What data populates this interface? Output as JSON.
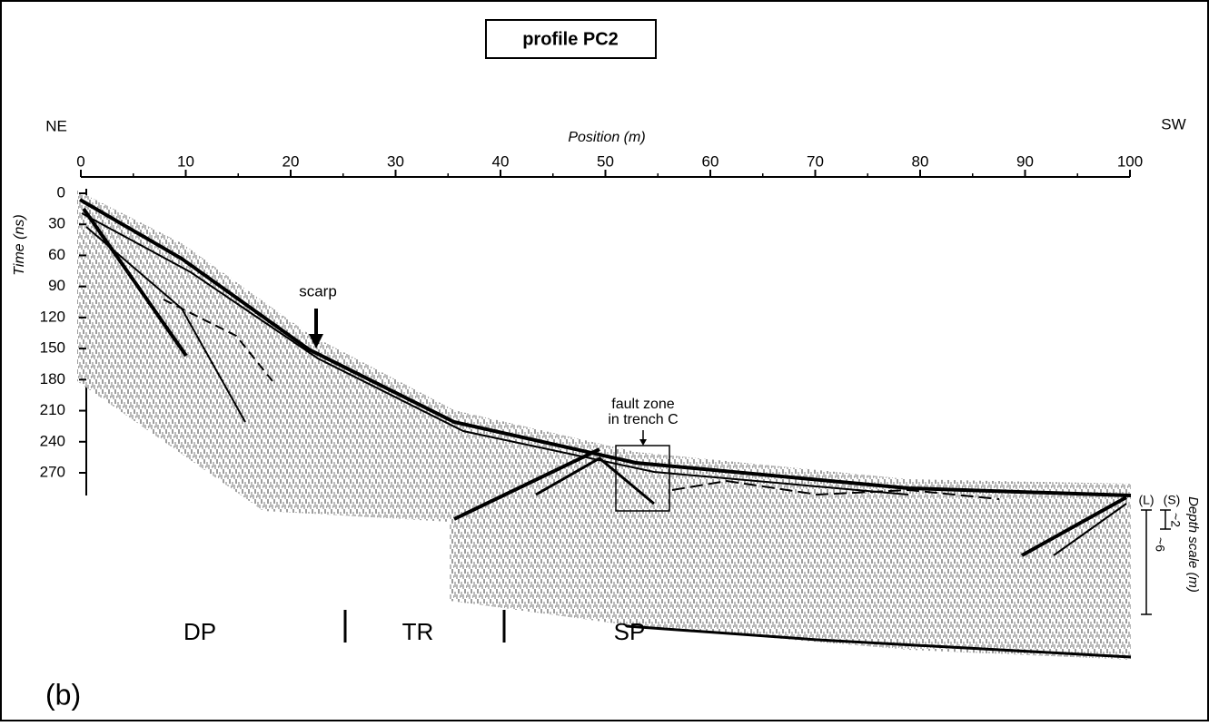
{
  "title": "profile PC2",
  "orientation": {
    "left": "NE",
    "right": "SW"
  },
  "position_axis": {
    "label": "Position (m)",
    "ticks": [
      0,
      10,
      20,
      30,
      40,
      50,
      60,
      70,
      80,
      90,
      100
    ]
  },
  "time_axis": {
    "label": "Time (ns)",
    "ticks": [
      0,
      30,
      60,
      90,
      120,
      150,
      180,
      210,
      240,
      270
    ]
  },
  "annotations": {
    "scarp": "scarp",
    "fault_zone": [
      "fault zone",
      "in trench C"
    ]
  },
  "zones": [
    "DP",
    "TR",
    "SP"
  ],
  "panel": "(b)",
  "depth_scale": {
    "label": "Depth scale (m)",
    "markers": [
      "(L)",
      "(S)"
    ],
    "values": [
      "~2",
      "~6"
    ]
  }
}
